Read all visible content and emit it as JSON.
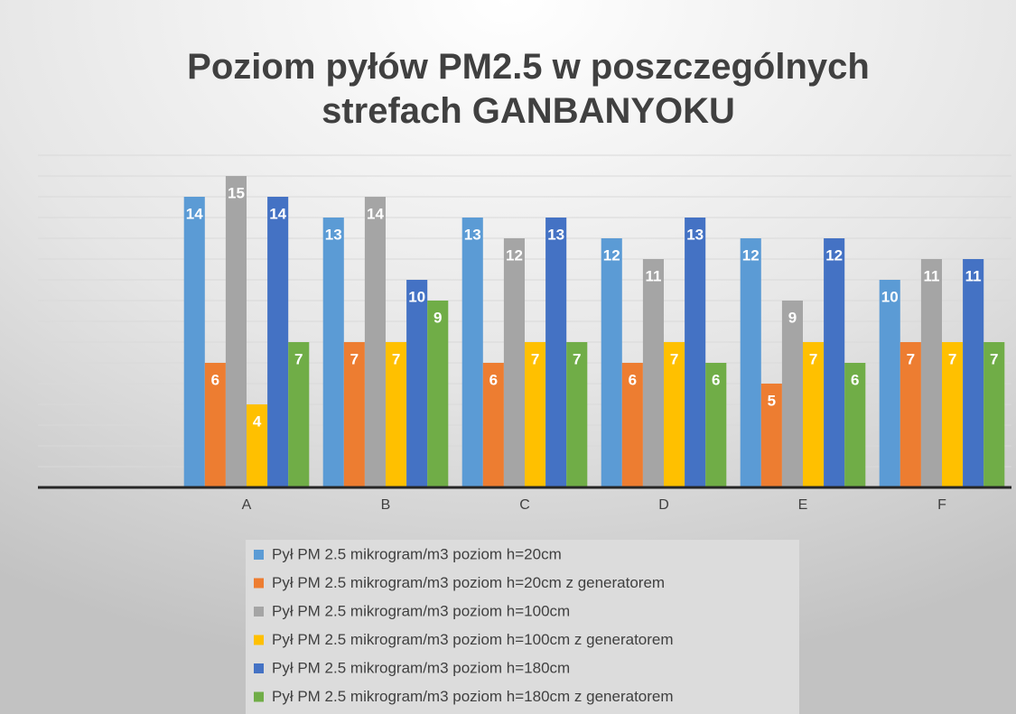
{
  "chart_data": {
    "type": "bar",
    "title": "Poziom pyłów PM2.5 w poszczególnych strefach GANBANYOKU",
    "categories": [
      null,
      "A",
      "B",
      "C",
      "D",
      "E",
      "F"
    ],
    "series": [
      {
        "name": "Pył PM 2.5 mikrogram/m3 poziom h=20cm",
        "color": "#5b9bd5",
        "values": [
          null,
          14,
          13,
          13,
          12,
          12,
          10
        ]
      },
      {
        "name": "Pył PM 2.5 mikrogram/m3 poziom h=20cm z generatorem",
        "color": "#ed7d31",
        "values": [
          null,
          6,
          7,
          6,
          6,
          5,
          7
        ]
      },
      {
        "name": "Pył PM 2.5 mikrogram/m3 poziom h=100cm",
        "color": "#a5a5a5",
        "values": [
          null,
          15,
          14,
          12,
          11,
          9,
          11
        ]
      },
      {
        "name": "Pył PM 2.5 mikrogram/m3 poziom h=100cm z generatorem",
        "color": "#ffc000",
        "values": [
          null,
          4,
          7,
          7,
          7,
          7,
          7
        ]
      },
      {
        "name": "Pył PM 2.5 mikrogram/m3 poziom h=180cm",
        "color": "#4472c4",
        "values": [
          null,
          14,
          10,
          13,
          13,
          12,
          11
        ]
      },
      {
        "name": "Pył PM 2.5 mikrogram/m3 poziom h=180cm z generatorem",
        "color": "#70ad47",
        "values": [
          null,
          7,
          9,
          7,
          6,
          6,
          7
        ]
      }
    ],
    "ylim": [
      0,
      16
    ],
    "yticks": [
      0,
      1,
      2,
      3,
      4,
      5,
      6,
      7,
      8,
      9,
      10,
      11,
      12,
      13,
      14,
      15,
      16
    ],
    "grid": true
  }
}
